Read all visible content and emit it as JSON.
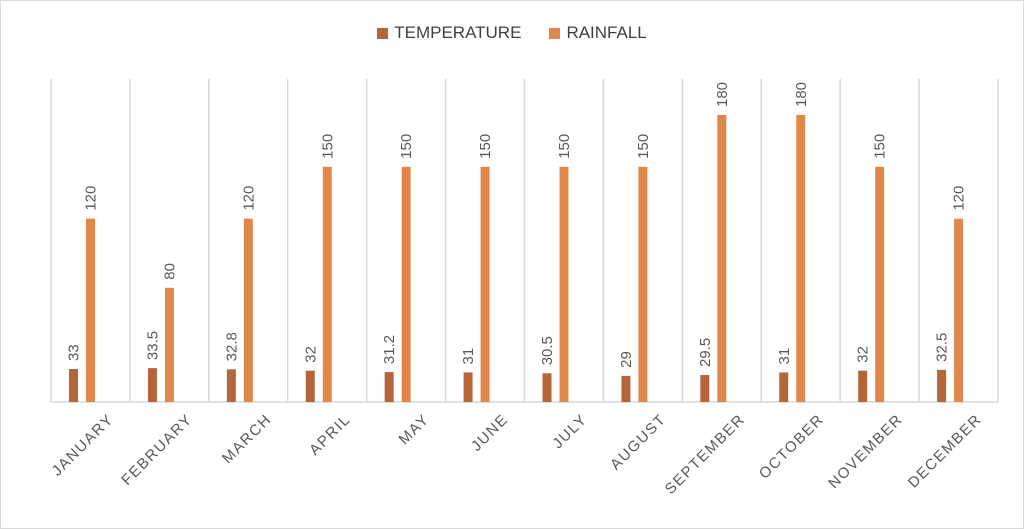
{
  "colors": {
    "temperature": "#b5653a",
    "rainfall": "#e0884a",
    "gridline": "#d9d9d9",
    "text": "#595959"
  },
  "legend": {
    "series_1": "TEMPERATURE",
    "series_2": "RAINFALL"
  },
  "chart_data": {
    "type": "bar",
    "categories": [
      "JANUARY",
      "FEBRUARY",
      "MARCH",
      "APRIL",
      "MAY",
      "JUNE",
      "JULY",
      "AUGUST",
      "SEPTEMBER",
      "OCTOBER",
      "NOVEMBER",
      "DECEMBER"
    ],
    "series": [
      {
        "name": "TEMPERATURE",
        "values": [
          33,
          33.5,
          32.8,
          32,
          31.2,
          31,
          30.5,
          29,
          29.5,
          31,
          32,
          32.5
        ],
        "labels": [
          "33",
          "33.5",
          "32.8",
          "32",
          "31.2",
          "31",
          "30.5",
          "29",
          "29.5",
          "31",
          "32",
          "32.5"
        ]
      },
      {
        "name": "RAINFALL",
        "values": [
          120,
          80,
          120,
          150,
          150,
          150,
          150,
          150,
          180,
          180,
          150,
          120
        ],
        "labels": [
          "120",
          "80",
          "120",
          "150",
          "150",
          "150",
          "150",
          "150",
          "180",
          "180",
          "150",
          "120"
        ]
      }
    ],
    "title": "",
    "xlabel": "",
    "ylabel": "",
    "ylim": [
      0,
      180
    ],
    "y_axis_visible": false,
    "grid": "vertical category separators",
    "legend_position": "top-center"
  }
}
